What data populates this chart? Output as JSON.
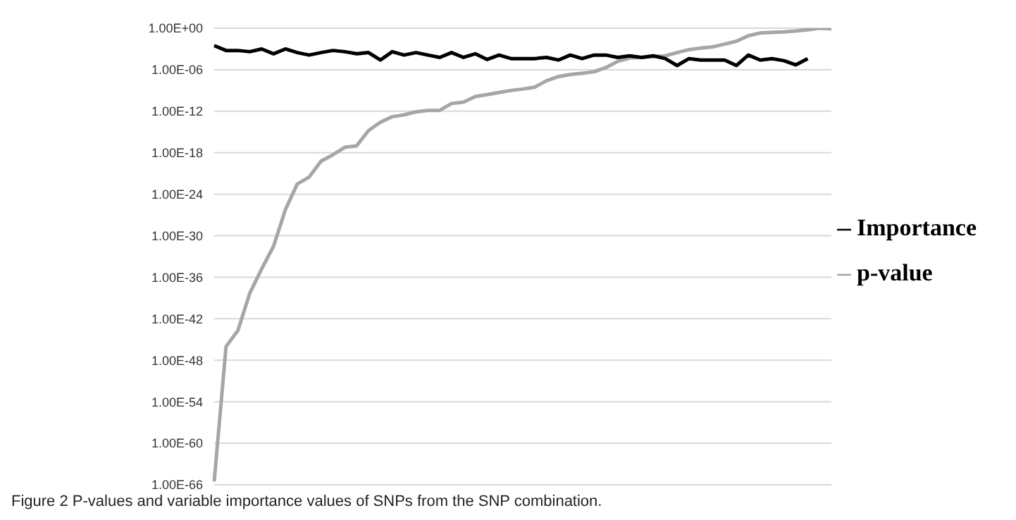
{
  "chart_data": {
    "type": "line",
    "log": "y",
    "grid": "y",
    "legend": "right",
    "marker": "none",
    "line_style": "solid",
    "categories": [
      null,
      null,
      null,
      null,
      null,
      null,
      null,
      null,
      null,
      null,
      null,
      null,
      null,
      null,
      null,
      null,
      null,
      null,
      null,
      null,
      null,
      null,
      null,
      null,
      null,
      null,
      null,
      null,
      null,
      null,
      null,
      null,
      null,
      null,
      null,
      null,
      null,
      null,
      null,
      null,
      null,
      null,
      null,
      null,
      null,
      null,
      null,
      null,
      null,
      null,
      null,
      null,
      null
    ],
    "ylim": [
      1e-66,
      1
    ],
    "yticks": [
      {
        "value": 1e-66,
        "label": "1.00E-66"
      },
      {
        "value": 1e-60,
        "label": "1.00E-60"
      },
      {
        "value": 1e-54,
        "label": "1.00E-54"
      },
      {
        "value": 1e-48,
        "label": "1.00E-48"
      },
      {
        "value": 1e-42,
        "label": "1.00E-42"
      },
      {
        "value": 1e-36,
        "label": "1.00E-36"
      },
      {
        "value": 1e-30,
        "label": "1.00E-30"
      },
      {
        "value": 1e-24,
        "label": "1.00E-24"
      },
      {
        "value": 1e-18,
        "label": "1.00E-18"
      },
      {
        "value": 1e-12,
        "label": "1.00E-12"
      },
      {
        "value": 1e-06,
        "label": "1.00E-06"
      },
      {
        "value": 1,
        "label": "1.00E+00"
      }
    ],
    "series": [
      {
        "name": "p-value",
        "color": "#a6a6a6",
        "values": [
          3e-66,
          1e-46,
          2e-44,
          5e-39,
          1.6e-35,
          3e-32,
          6e-27,
          3e-23,
          3e-22,
          6e-20,
          5e-19,
          6e-18,
          1e-17,
          1.6e-15,
          2.5e-14,
          1.6e-13,
          3e-13,
          8e-13,
          1.3e-12,
          1.3e-12,
          1.3e-11,
          2e-11,
          1.3e-10,
          2.5e-10,
          5e-10,
          1e-09,
          1.6e-09,
          3e-09,
          2.5e-08,
          1e-07,
          2e-07,
          3e-07,
          5e-07,
          2e-06,
          1.6e-05,
          5e-05,
          6e-05,
          8e-05,
          0.0001,
          0.0003,
          0.0008,
          0.0013,
          0.002,
          0.005,
          0.013,
          0.08,
          0.2,
          0.25,
          0.3,
          0.4,
          0.6,
          1,
          0.8
        ]
      },
      {
        "name": "Importance",
        "color": "#000000",
        "values": [
          0.003,
          0.0006,
          0.0006,
          0.0004,
          0.001,
          0.0002,
          0.001,
          0.0003,
          0.00013,
          0.0003,
          0.0006,
          0.0004,
          0.0002,
          0.0003,
          2.5e-05,
          0.0004,
          0.00013,
          0.0003,
          0.00013,
          6e-05,
          0.0003,
          6e-05,
          0.0002,
          3e-05,
          0.00013,
          4e-05,
          4e-05,
          4e-05,
          6e-05,
          2.5e-05,
          0.00013,
          4e-05,
          0.00013,
          0.00013,
          6e-05,
          0.0001,
          6e-05,
          0.0001,
          4e-05,
          4e-06,
          4e-05,
          2.5e-05,
          2.5e-05,
          2.5e-05,
          4e-06,
          0.00013,
          2.5e-05,
          4e-05,
          2e-05,
          5e-06,
          4e-05,
          null,
          null
        ]
      }
    ],
    "annotations": [
      "Figure 2 P-values and variable importance values of SNPs from the SNP combination."
    ]
  }
}
